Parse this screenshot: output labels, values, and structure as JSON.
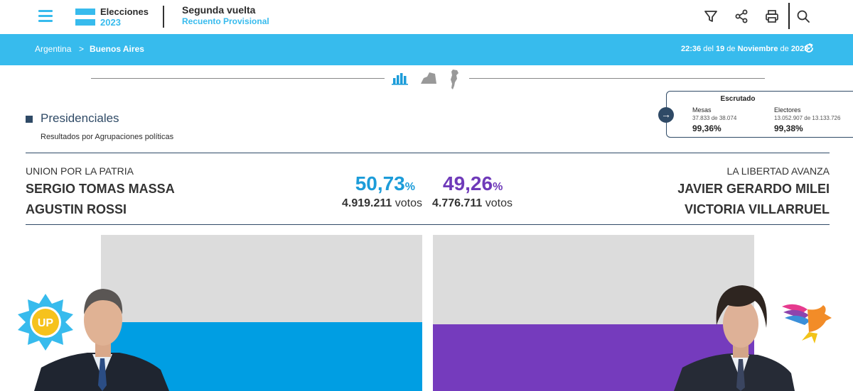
{
  "header": {
    "brand_title": "Elecciones",
    "brand_year": "2023",
    "round_title": "Segunda vuelta",
    "round_subtitle": "Recuento Provisional",
    "tools": [
      "filter-icon",
      "share-icon",
      "print-icon",
      "search-icon"
    ],
    "accent_color": "#37bbed"
  },
  "breadcrumb": {
    "items": [
      "Argentina",
      "Buenos Aires"
    ],
    "separator": ">",
    "time": "22:36",
    "date_prefix": "del",
    "day": "19",
    "date_mid": "de",
    "month": "Noviembre",
    "date_mid2": "de",
    "year": "2023"
  },
  "views": [
    "bar-chart-icon",
    "map-region-icon",
    "argentina-map-icon"
  ],
  "scrutiny": {
    "title": "Escrutado",
    "mesas_label": "Mesas",
    "mesas_detail": "37.833 de 38.074",
    "mesas_pct": "99,36%",
    "electores_label": "Electores",
    "electores_detail": "13.052.907 de 13.133.726",
    "electores_pct": "99,38%"
  },
  "section": {
    "title": "Presidenciales",
    "subtitle": "Resultados por Agrupaciones políticas"
  },
  "results": {
    "votes_unit": "votos",
    "percent_symbol": "%",
    "candidates": [
      {
        "party": "UNION POR LA PATRIA",
        "president": "SERGIO TOMAS MASSA",
        "vice": "AGUSTIN ROSSI",
        "percent": "50,73",
        "percent_value": 50.73,
        "votes": "4.919.211",
        "color": "#009ee3",
        "logo_text": "UP"
      },
      {
        "party": "LA LIBERTAD AVANZA",
        "president": "JAVIER GERARDO MILEI",
        "vice": "VICTORIA VILLARRUEL",
        "percent": "49,26",
        "percent_value": 49.26,
        "votes": "4.776.711",
        "color": "#753bbd"
      }
    ]
  }
}
